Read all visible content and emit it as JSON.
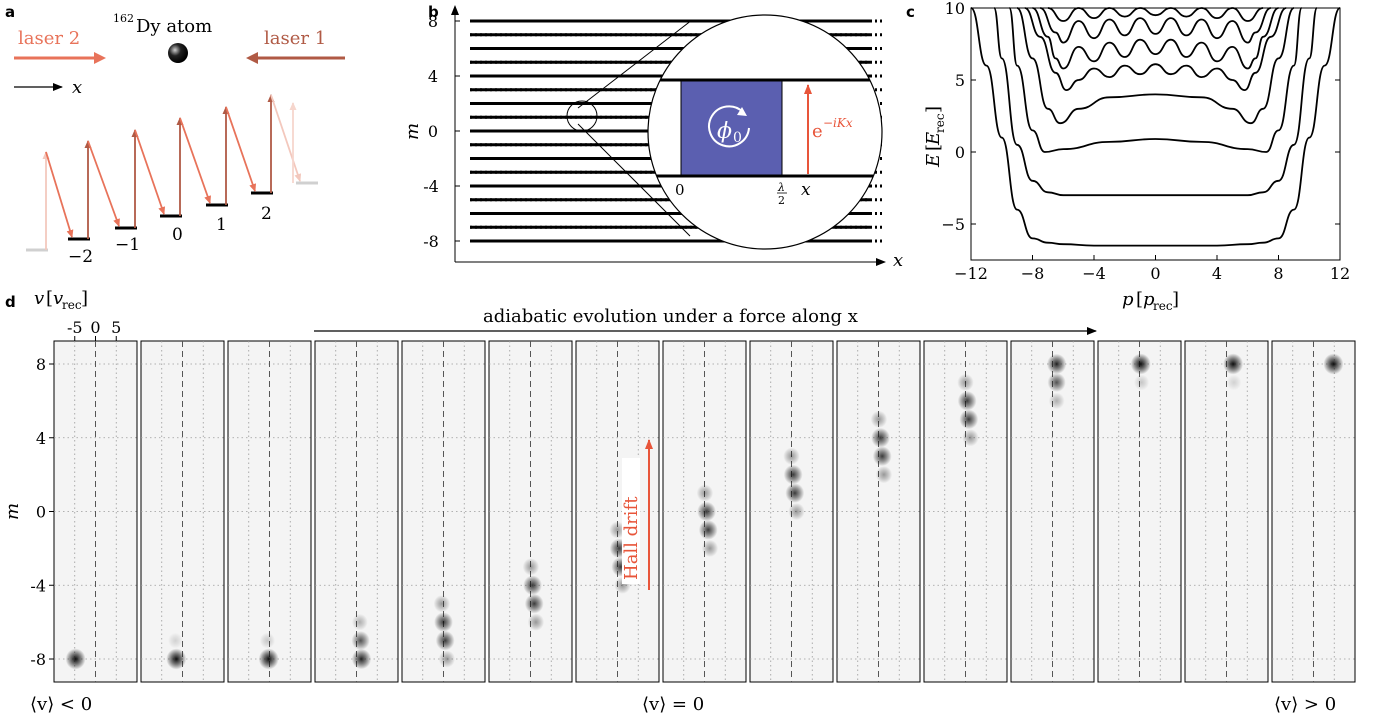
{
  "panel_a": {
    "letter": "a",
    "laser2": "laser 2",
    "laser1": "laser 1",
    "atom_sup": "162",
    "atom_name": "Dy atom",
    "x_label": "x",
    "levels": [
      "−2",
      "−1",
      "0",
      "1",
      "2"
    ]
  },
  "panel_b": {
    "letter": "b",
    "ylabel": "m",
    "xlabel": "x",
    "yticks": [
      "8",
      "4",
      "0",
      "-4",
      "-8"
    ],
    "inset_phi": "ϕ",
    "inset_phi_sub": "0",
    "inset_phase": "e",
    "inset_phase_sup": "−iKx",
    "inset_x0": "0",
    "inset_half_num": "λ",
    "inset_half_den": "2",
    "inset_x": "x",
    "colors": {
      "flux": "#5b5fb0",
      "accent": "#e8553a"
    }
  },
  "chart_data": [
    {
      "type": "line",
      "panel": "c",
      "xlabel": "p [p_rec]",
      "ylabel": "E [E_rec]",
      "xlim": [
        -12,
        12
      ],
      "ylim": [
        -7.5,
        10
      ],
      "xticks": [
        "−12",
        "−8",
        "−4",
        "0",
        "4",
        "8",
        "12"
      ],
      "yticks": [
        "10",
        "5",
        "0",
        "−5"
      ],
      "series": [
        {
          "x": [
            -12,
            -11,
            -10,
            -9,
            -8,
            -7,
            -6,
            -4,
            0,
            4,
            6,
            7,
            8,
            9,
            10,
            11,
            12
          ],
          "y": [
            10,
            6,
            1,
            -4,
            -6,
            -6.3,
            -6.4,
            -6.5,
            -6.5,
            -6.5,
            -6.4,
            -6.3,
            -6,
            -4,
            1,
            6,
            10
          ]
        },
        {
          "x": [
            -10.5,
            -10,
            -9,
            -8,
            -7,
            -6,
            0,
            6,
            7,
            8,
            9,
            10,
            10.5
          ],
          "y": [
            10,
            6.5,
            0.5,
            -2,
            -2.8,
            -3,
            -3,
            -3,
            -2.8,
            -2,
            0.5,
            6.5,
            10
          ]
        },
        {
          "x": [
            -9.5,
            -9,
            -8,
            -7.2,
            -6,
            -3,
            0,
            3,
            6,
            7.2,
            8,
            9,
            9.5
          ],
          "y": [
            10,
            6,
            1.5,
            0,
            0.2,
            0.7,
            0.9,
            0.7,
            0.2,
            0,
            1.5,
            6,
            10
          ]
        },
        {
          "x": [
            -9,
            -8,
            -7,
            -6.2,
            -5,
            -3,
            0,
            3,
            5,
            6.2,
            7,
            8,
            9
          ],
          "y": [
            10,
            6.5,
            3,
            2,
            3,
            3.8,
            4,
            3.8,
            3,
            2,
            3,
            6.5,
            10
          ]
        },
        {
          "x": [
            -8.5,
            -7.5,
            -6.5,
            -5.8,
            -5,
            -4,
            -3,
            -2,
            -1,
            0,
            1,
            2,
            3,
            4,
            5,
            5.8,
            6.5,
            7.5,
            8.5
          ],
          "y": [
            10,
            8,
            5.5,
            4.3,
            5,
            5.8,
            5.2,
            6,
            5.4,
            6.1,
            5.4,
            6,
            5.2,
            5.8,
            5,
            4.3,
            5.5,
            8,
            10
          ]
        },
        {
          "x": [
            -8,
            -7,
            -6.5,
            -6,
            -5,
            -4,
            -3,
            -2,
            -1,
            0,
            1,
            2,
            3,
            4,
            5,
            6,
            6.5,
            7,
            8
          ],
          "y": [
            10,
            8,
            6.5,
            5.8,
            7.3,
            6.3,
            7.6,
            6.6,
            7.8,
            6.8,
            7.8,
            6.6,
            7.6,
            6.3,
            7.3,
            5.8,
            6.5,
            8,
            10
          ]
        },
        {
          "x": [
            -7.5,
            -6.5,
            -6,
            -5,
            -4,
            -3,
            -2,
            -1,
            0,
            1,
            2,
            3,
            4,
            5,
            6,
            6.5,
            7.5
          ],
          "y": [
            10,
            8.3,
            7.6,
            9.1,
            7.9,
            9.2,
            8.1,
            9.3,
            8.2,
            9.3,
            8.1,
            9.2,
            7.9,
            9.1,
            7.6,
            8.3,
            10
          ]
        },
        {
          "x": [
            -7,
            -6,
            -5,
            -4,
            -3,
            -2,
            -1,
            0,
            1,
            2,
            3,
            4,
            5,
            6,
            7
          ],
          "y": [
            10,
            9.1,
            10,
            9.3,
            10,
            9.4,
            10,
            9.5,
            10,
            9.4,
            10,
            9.3,
            10,
            9.1,
            10
          ]
        }
      ]
    },
    {
      "type": "heatmap",
      "panel": "d",
      "xlabel": "v [v_rec]",
      "ylabel": "m",
      "xticks": [
        "-5",
        "0",
        "5"
      ],
      "yticks": [
        "8",
        "4",
        "0",
        "-4",
        "-8"
      ],
      "ylim": [
        -9,
        9
      ],
      "arrow_label": "adiabatic evolution under a force along x",
      "hall_label": "Hall drift",
      "bottom_labels": [
        "⟨v⟩ < 0",
        "⟨v⟩ = 0",
        "⟨v⟩ > 0"
      ],
      "frames": [
        {
          "m": [
            -8
          ],
          "v": [
            -4.8
          ],
          "w": [
            1
          ]
        },
        {
          "m": [
            -8,
            -7
          ],
          "v": [
            -1.5,
            -1.7
          ],
          "w": [
            1,
            0.15
          ]
        },
        {
          "m": [
            -8,
            -7
          ],
          "v": [
            -0.2,
            -0.5
          ],
          "w": [
            1,
            0.2
          ]
        },
        {
          "m": [
            -8,
            -7,
            -6
          ],
          "v": [
            1.2,
            1.0,
            0.8
          ],
          "w": [
            0.9,
            0.7,
            0.3
          ]
        },
        {
          "m": [
            -8,
            -7,
            -6,
            -5
          ],
          "v": [
            0.8,
            0.4,
            0.0,
            -0.4
          ],
          "w": [
            0.4,
            0.8,
            0.8,
            0.4
          ]
        },
        {
          "m": [
            -6,
            -5,
            -4,
            -3
          ],
          "v": [
            1.3,
            0.9,
            0.5,
            0.1
          ],
          "w": [
            0.4,
            0.8,
            0.8,
            0.4
          ]
        },
        {
          "m": [
            -4,
            -3,
            -2,
            -1
          ],
          "v": [
            1.2,
            0.8,
            0.4,
            0.0
          ],
          "w": [
            0.4,
            0.8,
            0.8,
            0.4
          ]
        },
        {
          "m": [
            -2,
            -1,
            0,
            1
          ],
          "v": [
            1.3,
            0.9,
            0.5,
            0.1
          ],
          "w": [
            0.4,
            0.8,
            0.8,
            0.4
          ]
        },
        {
          "m": [
            0,
            1,
            2,
            3
          ],
          "v": [
            1.2,
            0.8,
            0.4,
            0.0
          ],
          "w": [
            0.4,
            0.8,
            0.8,
            0.4
          ]
        },
        {
          "m": [
            2,
            3,
            4,
            5
          ],
          "v": [
            1.3,
            0.9,
            0.5,
            0.1
          ],
          "w": [
            0.4,
            0.8,
            0.8,
            0.4
          ]
        },
        {
          "m": [
            4,
            5,
            6,
            7
          ],
          "v": [
            1.2,
            0.8,
            0.4,
            0.0
          ],
          "w": [
            0.4,
            0.8,
            0.8,
            0.4
          ]
        },
        {
          "m": [
            6,
            7,
            8
          ],
          "v": [
            1.0,
            1.0,
            1.0
          ],
          "w": [
            0.3,
            0.7,
            0.9
          ]
        },
        {
          "m": [
            7,
            8
          ],
          "v": [
            0.5,
            0.3
          ],
          "w": [
            0.2,
            1
          ]
        },
        {
          "m": [
            7,
            8
          ],
          "v": [
            1.8,
            1.6
          ],
          "w": [
            0.15,
            1
          ]
        },
        {
          "m": [
            8
          ],
          "v": [
            4.8
          ],
          "w": [
            1
          ]
        }
      ]
    }
  ]
}
